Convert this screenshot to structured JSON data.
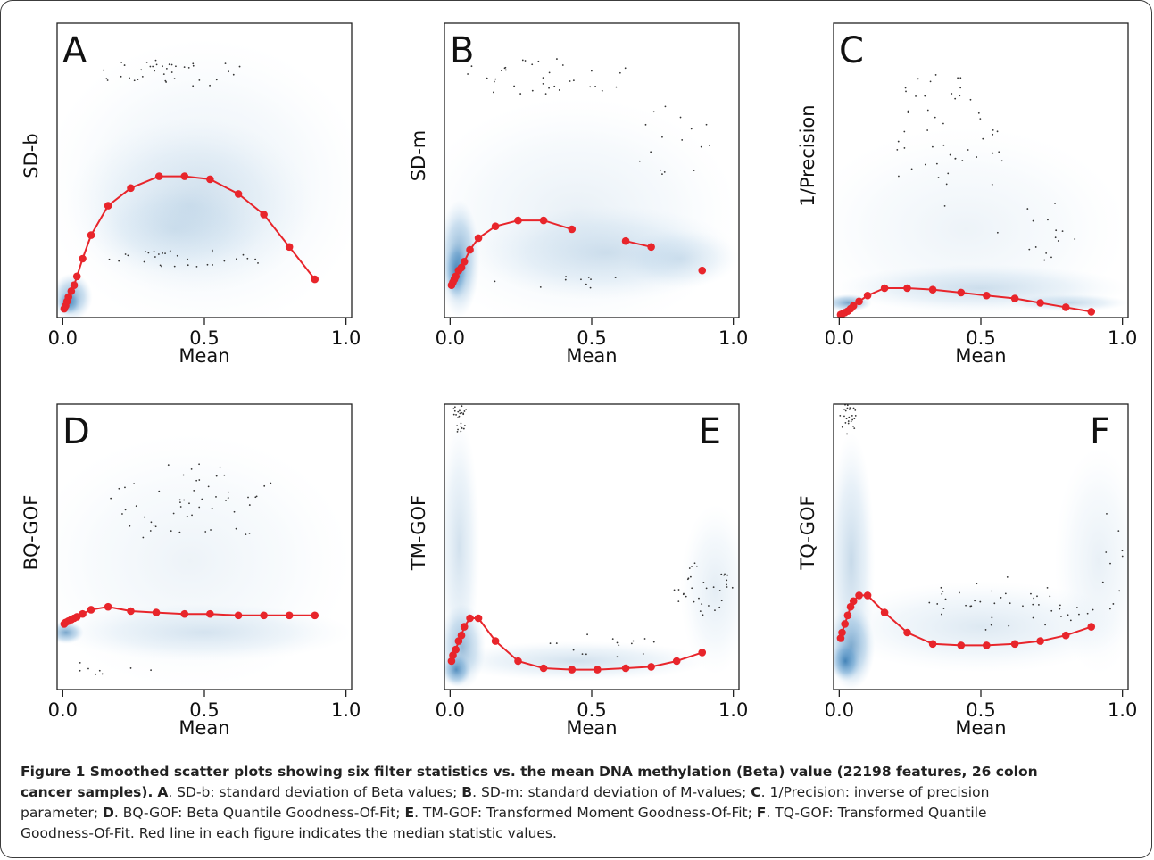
{
  "chart_data": [
    {
      "type": "scatter",
      "panel_letter": "A",
      "letter_position": "top-left",
      "xlabel": "Mean",
      "ylabel": "SD-b",
      "x_ticks": [
        "0.0",
        "0.5",
        "1.0"
      ],
      "xlim": [
        -0.02,
        1.02
      ],
      "median_line": {
        "color": "#e8252b",
        "segments": [
          {
            "x": [
              0.005,
              0.01,
              0.015,
              0.02,
              0.03,
              0.04,
              0.05,
              0.07,
              0.1,
              0.16,
              0.24,
              0.34,
              0.43,
              0.52,
              0.62,
              0.71,
              0.8,
              0.89
            ],
            "y": [
              0.03,
              0.04,
              0.055,
              0.07,
              0.09,
              0.11,
              0.14,
              0.2,
              0.28,
              0.38,
              0.44,
              0.48,
              0.48,
              0.47,
              0.42,
              0.35,
              0.24,
              0.13
            ]
          }
        ]
      },
      "colour": "#2f78b4"
    },
    {
      "type": "scatter",
      "panel_letter": "B",
      "letter_position": "top-left",
      "xlabel": "Mean",
      "ylabel": "SD-m",
      "x_ticks": [
        "0.0",
        "0.5",
        "1.0"
      ],
      "xlim": [
        -0.02,
        1.02
      ],
      "median_line": {
        "color": "#e8252b",
        "segments": [
          {
            "x": [
              0.005,
              0.01,
              0.015,
              0.02,
              0.03,
              0.04,
              0.05,
              0.07,
              0.1,
              0.16,
              0.24,
              0.33,
              0.43
            ],
            "y": [
              0.11,
              0.12,
              0.13,
              0.14,
              0.16,
              0.17,
              0.19,
              0.23,
              0.27,
              0.31,
              0.33,
              0.33,
              0.3
            ]
          },
          {
            "x": [
              0.62,
              0.71
            ],
            "y": [
              0.26,
              0.24
            ]
          },
          {
            "x": [
              0.89
            ],
            "y": [
              0.16
            ]
          }
        ]
      }
    },
    {
      "type": "scatter",
      "panel_letter": "C",
      "letter_position": "top-left",
      "xlabel": "Mean",
      "ylabel": "1/Precision",
      "x_ticks": [
        "0.0",
        "0.5",
        "1.0"
      ],
      "xlim": [
        -0.02,
        1.02
      ],
      "median_line": {
        "color": "#e8252b",
        "segments": [
          {
            "x": [
              0.005,
              0.01,
              0.02,
              0.03,
              0.04,
              0.05,
              0.07,
              0.1,
              0.16,
              0.24,
              0.33,
              0.43,
              0.52,
              0.62,
              0.71,
              0.8,
              0.89
            ],
            "y": [
              0.01,
              0.012,
              0.017,
              0.022,
              0.03,
              0.04,
              0.055,
              0.075,
              0.1,
              0.1,
              0.095,
              0.085,
              0.075,
              0.065,
              0.05,
              0.035,
              0.02
            ]
          }
        ]
      }
    },
    {
      "type": "scatter",
      "panel_letter": "D",
      "letter_position": "top-left",
      "xlabel": "Mean",
      "ylabel": "BQ-GOF",
      "x_ticks": [
        "0.0",
        "0.5",
        "1.0"
      ],
      "xlim": [
        -0.02,
        1.02
      ],
      "median_line": {
        "color": "#e8252b",
        "segments": [
          {
            "x": [
              0.005,
              0.01,
              0.02,
              0.03,
              0.04,
              0.05,
              0.07,
              0.1,
              0.16,
              0.24,
              0.33,
              0.43,
              0.52,
              0.62,
              0.71,
              0.8,
              0.89
            ],
            "y": [
              0.23,
              0.235,
              0.24,
              0.245,
              0.25,
              0.255,
              0.265,
              0.28,
              0.29,
              0.275,
              0.27,
              0.265,
              0.265,
              0.26,
              0.26,
              0.26,
              0.26
            ]
          }
        ]
      }
    },
    {
      "type": "scatter",
      "panel_letter": "E",
      "letter_position": "top-right",
      "xlabel": "Mean",
      "ylabel": "TM-GOF",
      "x_ticks": [
        "0.0",
        "0.5",
        "1.0"
      ],
      "xlim": [
        -0.02,
        1.02
      ],
      "median_line": {
        "color": "#e8252b",
        "segments": [
          {
            "x": [
              0.005,
              0.01,
              0.02,
              0.03,
              0.04,
              0.05,
              0.07,
              0.1,
              0.16,
              0.24,
              0.33,
              0.43,
              0.52,
              0.62,
              0.71,
              0.8,
              0.89
            ],
            "y": [
              0.1,
              0.12,
              0.14,
              0.17,
              0.19,
              0.22,
              0.25,
              0.25,
              0.17,
              0.1,
              0.075,
              0.07,
              0.07,
              0.075,
              0.08,
              0.1,
              0.13
            ]
          }
        ]
      }
    },
    {
      "type": "scatter",
      "panel_letter": "F",
      "letter_position": "top-right",
      "xlabel": "Mean",
      "ylabel": "TQ-GOF",
      "x_ticks": [
        "0.0",
        "0.5",
        "1.0"
      ],
      "xlim": [
        -0.02,
        1.02
      ],
      "median_line": {
        "color": "#e8252b",
        "segments": [
          {
            "x": [
              0.005,
              0.01,
              0.02,
              0.03,
              0.04,
              0.05,
              0.07,
              0.1,
              0.16,
              0.24,
              0.33,
              0.43,
              0.52,
              0.62,
              0.71,
              0.8,
              0.89
            ],
            "y": [
              0.18,
              0.2,
              0.23,
              0.26,
              0.29,
              0.31,
              0.33,
              0.33,
              0.27,
              0.2,
              0.16,
              0.155,
              0.155,
              0.16,
              0.17,
              0.19,
              0.22
            ]
          }
        ]
      }
    }
  ],
  "caption": {
    "bold_title": "Figure 1 Smoothed scatter plots showing six filter statistics vs. the mean DNA methylation (Beta) value (22198 features, 26 colon",
    "bold_title_cont": "cancer samples).",
    "items": [
      {
        "letter": "A",
        "text": ". SD-b: standard deviation of Beta values; "
      },
      {
        "letter": "B",
        "text": ". SD-m: standard deviation of M-values; "
      },
      {
        "letter": "C",
        "text": ". 1/Precision: inverse of precision"
      },
      {
        "letter": "",
        "text": "parameter; "
      },
      {
        "letter": "D",
        "text": ". BQ-GOF: Beta Quantile Goodness-Of-Fit; "
      },
      {
        "letter": "E",
        "text": ". TM-GOF: Transformed Moment Goodness-Of-Fit; "
      },
      {
        "letter": "F",
        "text": ". TQ-GOF: Transformed Quantile"
      },
      {
        "letter": "",
        "text": "Goodness-Of-Fit. Red line in each figure indicates the median statistic values."
      }
    ]
  }
}
